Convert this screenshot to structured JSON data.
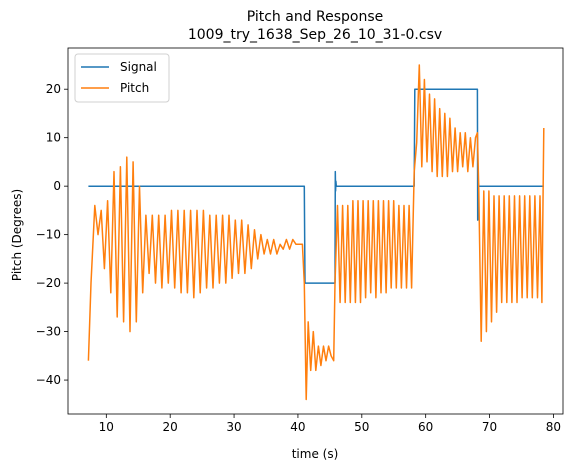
{
  "chart_data": {
    "type": "line",
    "title": "Pitch and Response",
    "subtitle": "1009_try_1638_Sep_26_10_31-0.csv",
    "xlabel": "time (s)",
    "ylabel": "Pitch (Degrees)",
    "xlim": [
      4,
      81.5
    ],
    "ylim": [
      -47,
      28.5
    ],
    "xticks": [
      10,
      20,
      30,
      40,
      50,
      60,
      70,
      80
    ],
    "yticks": [
      20,
      10,
      0,
      -10,
      -20,
      -30,
      -40
    ],
    "xtick_labels": [
      "10",
      "20",
      "30",
      "40",
      "50",
      "60",
      "70",
      "80"
    ],
    "ytick_labels": [
      "20",
      "10",
      "0",
      "−10",
      "−20",
      "−30",
      "−40"
    ],
    "grid": false,
    "legend": "upper left",
    "series": [
      {
        "name": "Signal",
        "color": "#1f77b4",
        "x": [
          7.2,
          41.0,
          41.1,
          45.8,
          45.85,
          45.9,
          45.95,
          46.0,
          58.2,
          58.3,
          68.1,
          68.15,
          68.2,
          68.3,
          78.5
        ],
        "y": [
          0,
          0,
          -20,
          -20,
          3,
          -1,
          1,
          0,
          0,
          20,
          20,
          -7,
          1,
          0,
          0
        ]
      },
      {
        "name": "Pitch",
        "color": "#ff7f0e",
        "x": [
          7.2,
          7.6,
          8.2,
          8.7,
          9.2,
          9.7,
          10.2,
          10.7,
          11.2,
          11.7,
          12.2,
          12.7,
          13.2,
          13.7,
          14.2,
          14.7,
          15.2,
          15.7,
          16.2,
          16.7,
          17.2,
          17.7,
          18.2,
          18.7,
          19.2,
          19.7,
          20.2,
          20.7,
          21.2,
          21.7,
          22.2,
          22.7,
          23.2,
          23.7,
          24.2,
          24.7,
          25.2,
          25.7,
          26.2,
          26.7,
          27.2,
          27.7,
          28.2,
          28.7,
          29.2,
          29.7,
          30.2,
          30.7,
          31.2,
          31.7,
          32.2,
          32.7,
          33.2,
          33.7,
          34.2,
          34.7,
          35.2,
          35.7,
          36.2,
          36.7,
          37.2,
          37.7,
          38.2,
          38.7,
          39.2,
          39.7,
          40.2,
          40.7,
          41.0,
          41.3,
          41.6,
          42.0,
          42.4,
          42.8,
          43.2,
          43.6,
          44.0,
          44.4,
          44.8,
          45.2,
          45.6,
          45.8,
          46.2,
          46.6,
          47.0,
          47.4,
          47.8,
          48.2,
          48.6,
          49.0,
          49.4,
          49.8,
          50.2,
          50.6,
          51.0,
          51.4,
          51.8,
          52.2,
          52.6,
          53.0,
          53.4,
          53.8,
          54.2,
          54.6,
          55.0,
          55.4,
          55.8,
          56.2,
          56.6,
          57.0,
          57.4,
          57.8,
          58.2,
          58.6,
          59.0,
          59.4,
          59.8,
          60.2,
          60.6,
          61.0,
          61.4,
          61.8,
          62.2,
          62.6,
          63.0,
          63.4,
          63.8,
          64.2,
          64.6,
          65.0,
          65.4,
          65.8,
          66.2,
          66.6,
          67.0,
          67.4,
          67.8,
          68.1,
          68.3,
          68.7,
          69.1,
          69.5,
          69.9,
          70.3,
          70.7,
          71.1,
          71.5,
          71.9,
          72.3,
          72.7,
          73.1,
          73.5,
          73.9,
          74.3,
          74.7,
          75.1,
          75.5,
          75.9,
          76.3,
          76.7,
          77.1,
          77.5,
          77.9,
          78.2,
          78.5
        ],
        "y": [
          -36,
          -20,
          -4,
          -10,
          -5,
          -17,
          -3,
          -22,
          3,
          -27,
          4,
          -28,
          6,
          -30,
          5,
          -28,
          0,
          -22,
          -6,
          -18,
          -6,
          -20,
          -6,
          -21,
          -6,
          -20,
          -5,
          -21,
          -5,
          -22,
          -5,
          -22,
          -5,
          -23,
          -5,
          -22,
          -5,
          -21,
          -6,
          -21,
          -6,
          -20,
          -6,
          -20,
          -6,
          -19,
          -7,
          -18,
          -7,
          -18,
          -8,
          -17,
          -9,
          -15,
          -10,
          -14,
          -11,
          -14,
          -11,
          -14,
          -12,
          -13,
          -11,
          -13,
          -11,
          -12,
          -12,
          -12,
          -20,
          -44,
          -28,
          -38,
          -30,
          -38,
          -33,
          -37,
          -33,
          -36,
          -33,
          -35,
          -36,
          -20,
          -4,
          -24,
          -4,
          -24,
          -4,
          -24,
          -3,
          -24,
          -3,
          -24,
          -3,
          -23,
          -3,
          -22,
          -3,
          -23,
          -3,
          -22,
          -3,
          -22,
          -3,
          -21,
          -3,
          -21,
          -4,
          -21,
          -4,
          -21,
          -4,
          -21,
          3,
          9,
          25,
          4,
          22,
          5,
          19,
          3,
          18,
          2,
          16,
          2,
          15,
          2,
          14,
          3,
          12,
          3,
          11,
          4,
          11,
          3,
          10,
          4,
          10,
          11,
          0,
          -32,
          -1,
          -30,
          -1,
          -28,
          -2,
          -26,
          -2,
          -24,
          -2,
          -24,
          -2,
          -24,
          -2,
          -24,
          -2,
          -23,
          -2,
          -23,
          -2,
          -23,
          -2,
          -23,
          -2,
          -24,
          12
        ]
      }
    ]
  }
}
